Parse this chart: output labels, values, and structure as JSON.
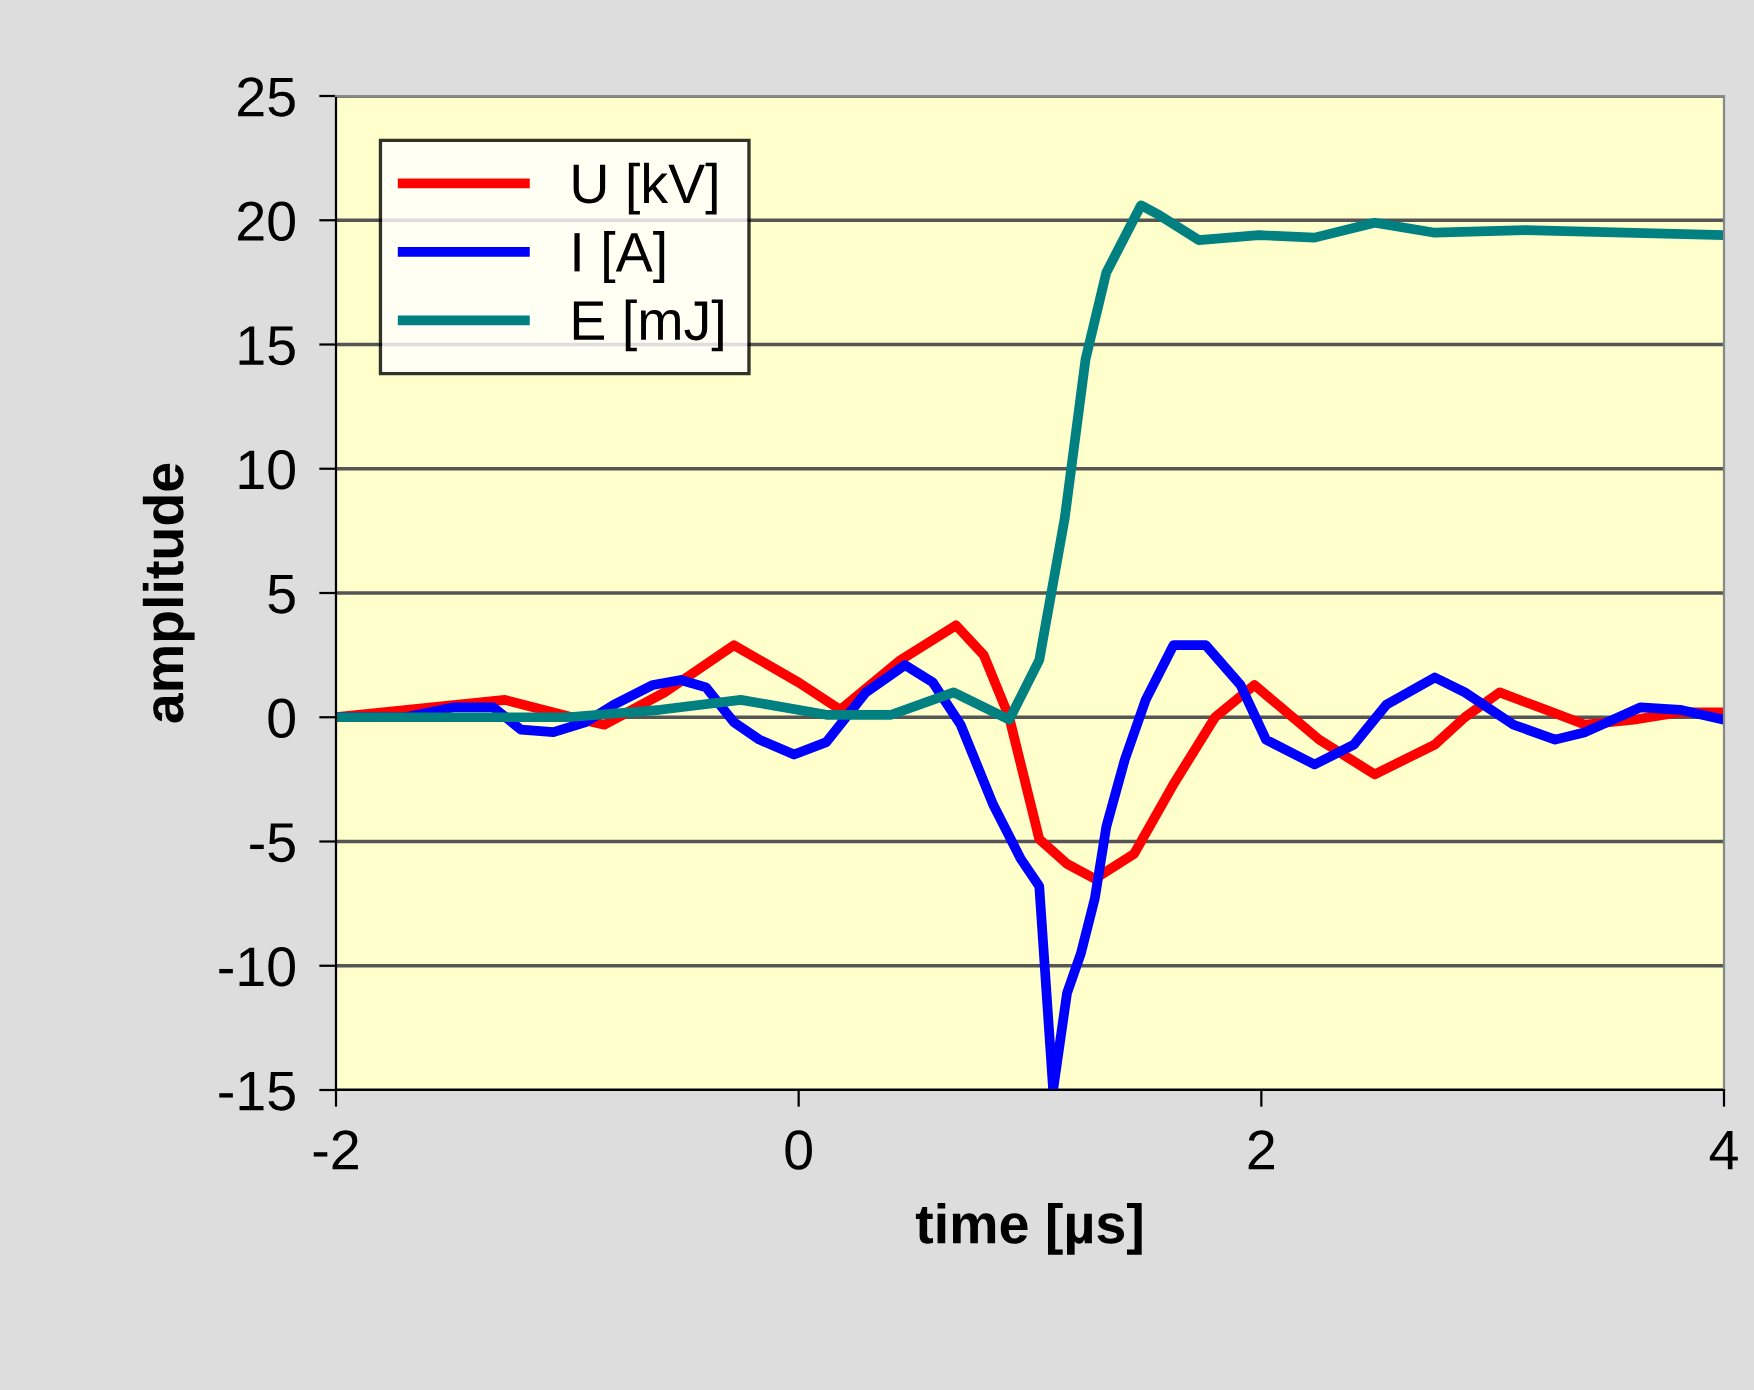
{
  "chart_data": {
    "type": "line",
    "xlabel": "time [µs]",
    "ylabel": "amplitude",
    "xlim": [
      -2,
      4
    ],
    "xticks": [
      -2,
      0,
      2,
      4
    ],
    "ylim": [
      -15,
      25
    ],
    "yticks": [
      -15,
      -10,
      -5,
      0,
      5,
      10,
      15,
      20,
      25
    ],
    "grid": "y",
    "legend": "top left",
    "marker": "none",
    "line_style": "solid",
    "series": [
      {
        "name": "U [kV]",
        "color": "#ff0000",
        "x": [
          -2,
          -1.27,
          -0.98,
          -0.84,
          -0.58,
          -0.28,
          0,
          0.18,
          0.44,
          0.68,
          0.8,
          0.91,
          1.04,
          1.16,
          1.28,
          1.45,
          1.62,
          1.8,
          1.97,
          2.25,
          2.49,
          2.75,
          2.88,
          3.03,
          3.23,
          3.4,
          3.61,
          3.81,
          4
        ],
        "values": [
          0,
          0.7,
          0,
          -0.3,
          1.0,
          2.9,
          1.4,
          0.3,
          2.3,
          3.7,
          2.5,
          0,
          -4.9,
          -5.9,
          -6.5,
          -5.5,
          -2.7,
          0,
          1.3,
          -0.9,
          -2.3,
          -1.1,
          0,
          1.0,
          0.3,
          -0.3,
          -0.1,
          0.2,
          0.2
        ]
      },
      {
        "name": "I [A]",
        "color": "#0000ff",
        "x": [
          -2,
          -1.7,
          -1.49,
          -1.32,
          -1.2,
          -1.06,
          -0.92,
          -0.8,
          -0.63,
          -0.51,
          -0.4,
          -0.28,
          -0.17,
          -0.02,
          0.12,
          0.29,
          0.46,
          0.58,
          0.7,
          0.84,
          0.96,
          1.04,
          1.1,
          1.16,
          1.22,
          1.28,
          1.33,
          1.41,
          1.5,
          1.62,
          1.76,
          1.91,
          2.02,
          2.23,
          2.4,
          2.54,
          2.75,
          2.88,
          3.09,
          3.27,
          3.4,
          3.64,
          3.81,
          4
        ],
        "values": [
          0,
          0,
          0.4,
          0.4,
          -0.5,
          -0.6,
          -0.2,
          0.5,
          1.3,
          1.5,
          1.2,
          -0.2,
          -0.9,
          -1.5,
          -1.0,
          1.0,
          2.1,
          1.4,
          -0.3,
          -3.5,
          -5.7,
          -6.8,
          -15,
          -11.1,
          -9.5,
          -7.3,
          -4.4,
          -1.7,
          0.7,
          2.9,
          2.9,
          1.3,
          -0.9,
          -1.9,
          -1.1,
          0.5,
          1.6,
          1.0,
          -0.3,
          -0.9,
          -0.6,
          0.4,
          0.3,
          -0.1
        ]
      },
      {
        "name": "E [mJ]",
        "color": "#008080",
        "x": [
          -2,
          -1.0,
          -0.6,
          -0.25,
          0.12,
          0.4,
          0.67,
          0.91,
          1.04,
          1.15,
          1.24,
          1.33,
          1.48,
          1.56,
          1.73,
          1.99,
          2.23,
          2.49,
          2.75,
          3.14,
          4
        ],
        "values": [
          0,
          0,
          0.3,
          0.7,
          0.1,
          0.1,
          1.0,
          -0.1,
          2.3,
          8.0,
          14.4,
          17.9,
          20.6,
          20.2,
          19.2,
          19.4,
          19.3,
          19.9,
          19.5,
          19.6,
          19.4
        ]
      }
    ]
  }
}
